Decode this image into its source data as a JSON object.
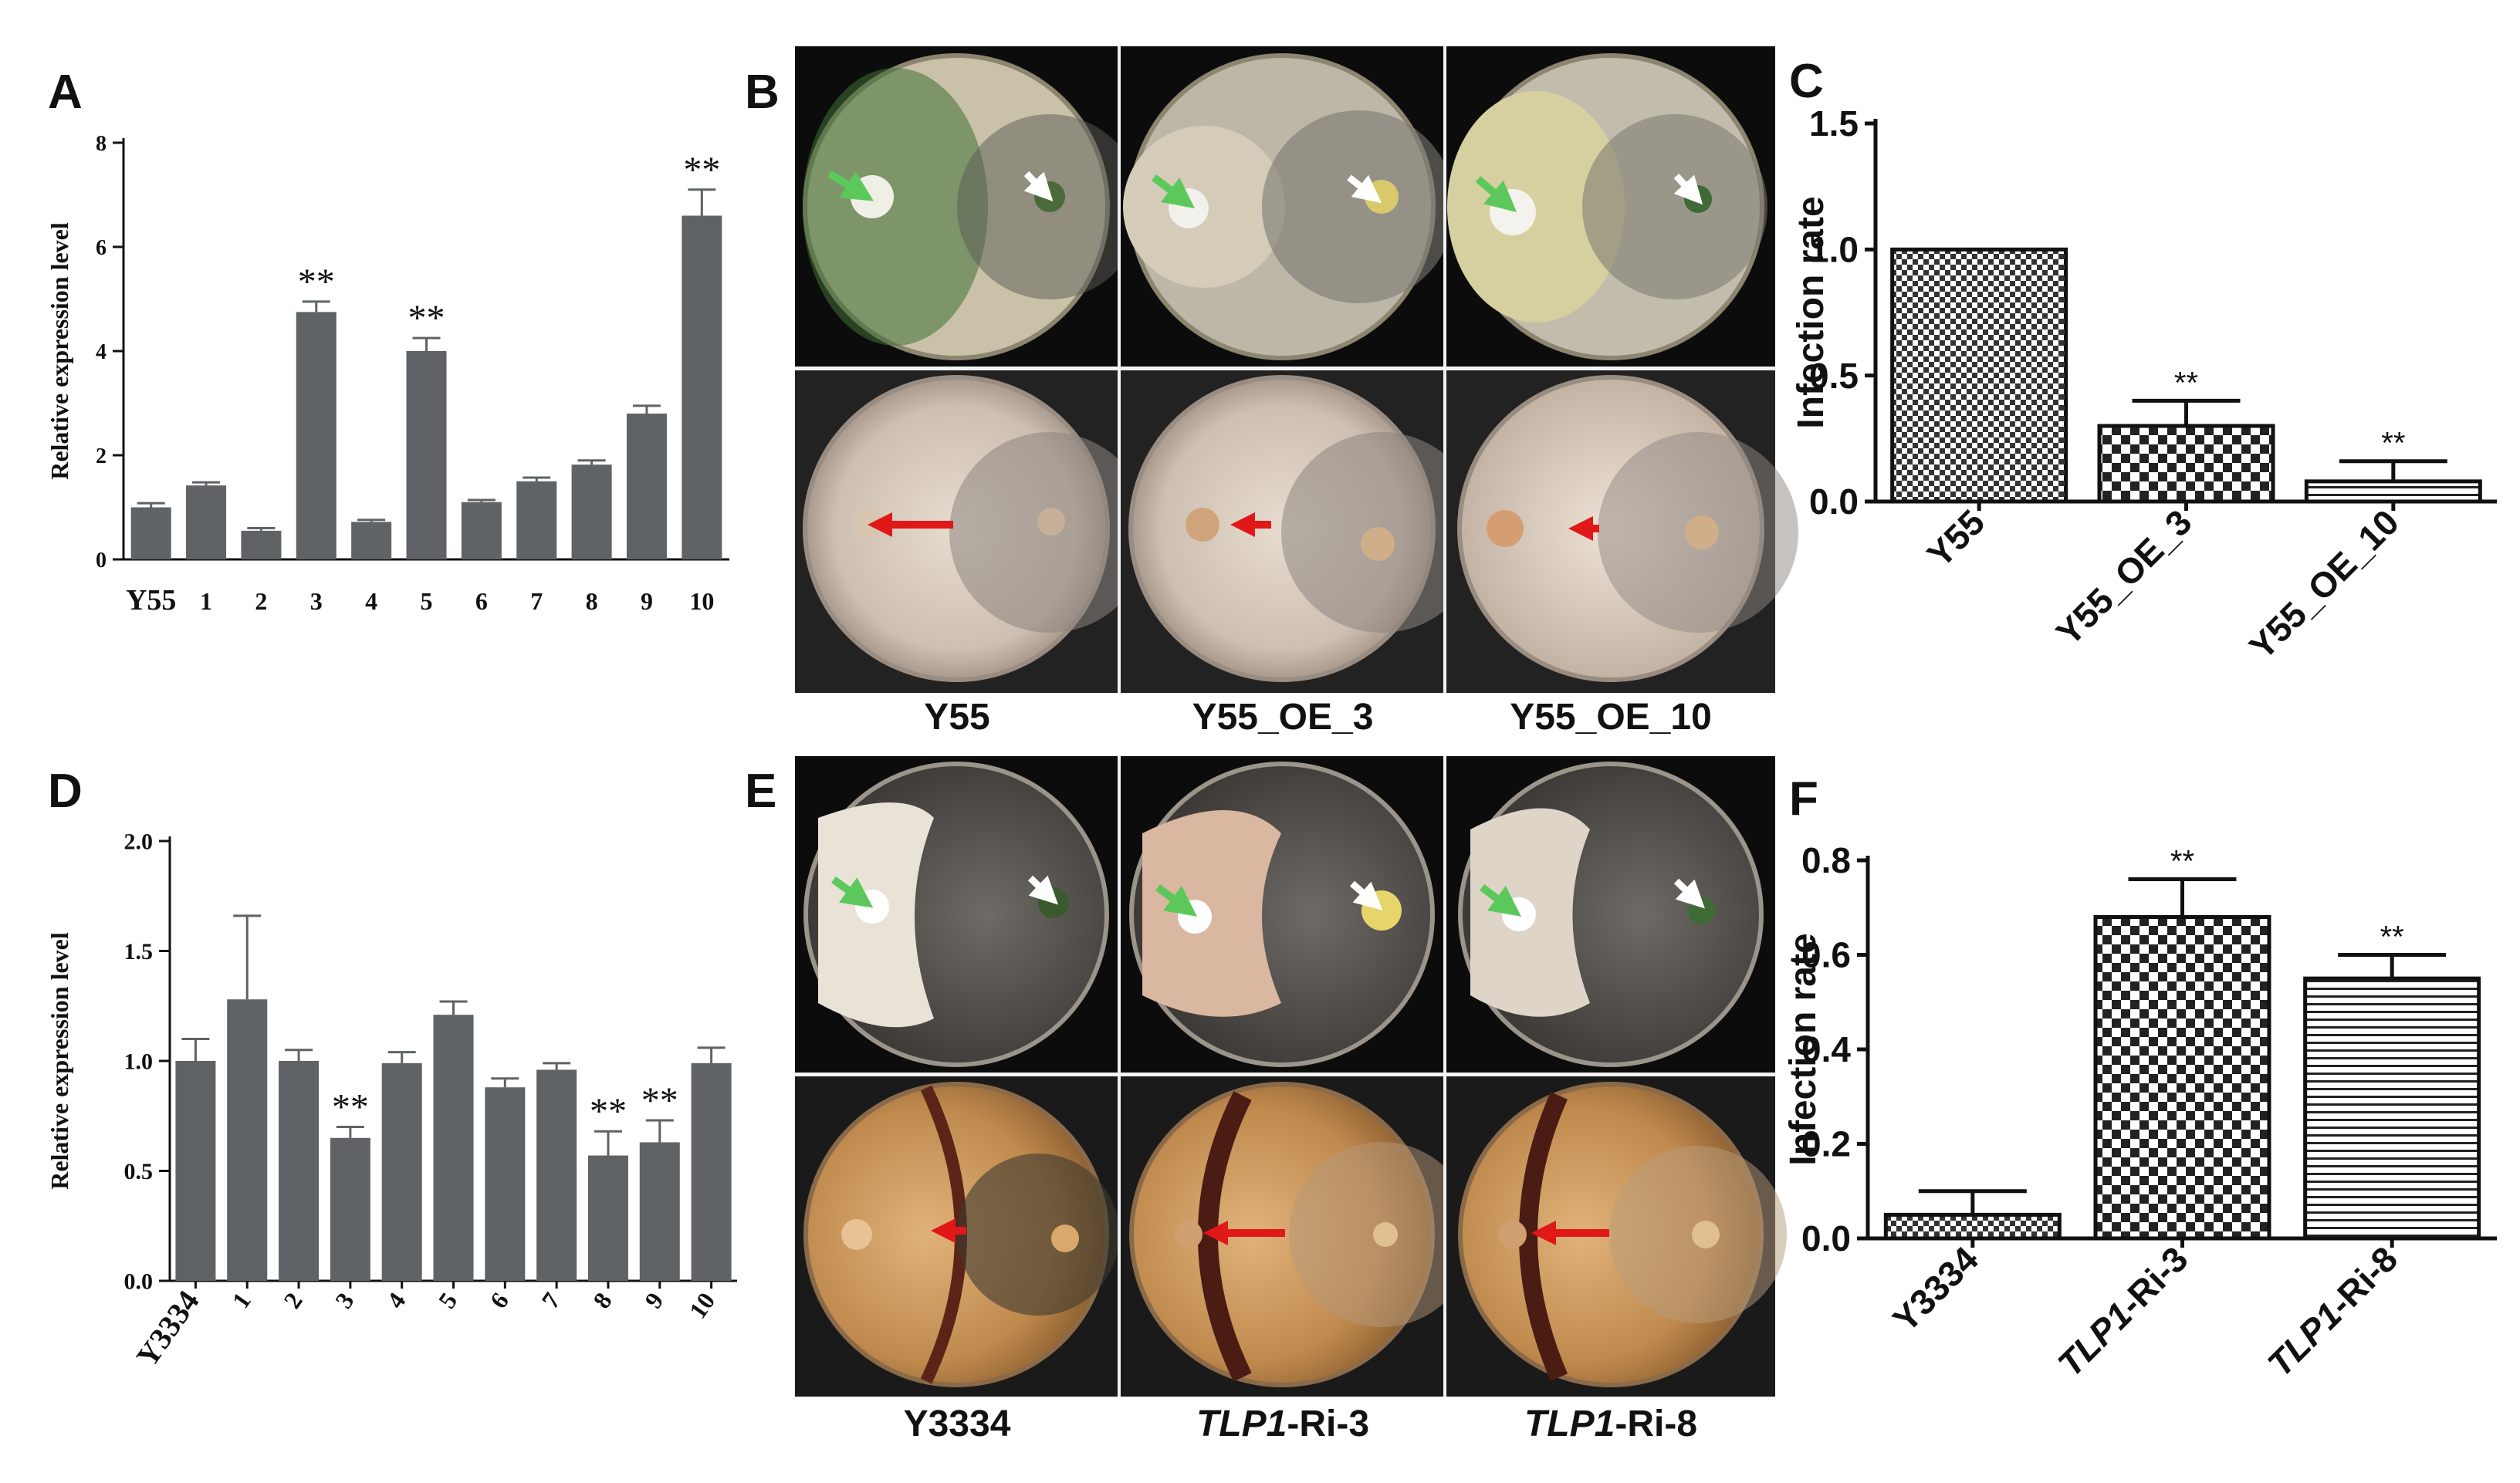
{
  "panels": {
    "A": "A",
    "B": "B",
    "C": "C",
    "D": "D",
    "E": "E",
    "F": "F"
  },
  "chart_data": [
    {
      "id": "A",
      "type": "bar",
      "ylabel": "Relative expression level",
      "xlabel": "",
      "ylim": [
        0,
        8
      ],
      "yticks": [
        0,
        2,
        4,
        6,
        8
      ],
      "categories": [
        "Y55",
        "1",
        "2",
        "3",
        "4",
        "5",
        "6",
        "7",
        "8",
        "9",
        "10"
      ],
      "values": [
        1.0,
        1.42,
        0.55,
        4.75,
        0.72,
        4.0,
        1.1,
        1.5,
        1.82,
        2.8,
        6.6
      ],
      "errors": [
        0.08,
        0.06,
        0.05,
        0.2,
        0.04,
        0.25,
        0.04,
        0.07,
        0.08,
        0.15,
        0.5
      ],
      "annotations": [
        "",
        "",
        "",
        "**",
        "",
        "**",
        "",
        "",
        "",
        "",
        "**"
      ],
      "bar_color": "#5f6365"
    },
    {
      "id": "C",
      "type": "bar",
      "ylabel": "Infection rate",
      "xlabel": "",
      "ylim": [
        0,
        1.5
      ],
      "yticks": [
        "0.0",
        "0.5",
        "1.0",
        "1.5"
      ],
      "categories": [
        "Y55",
        "Y55_OE_3",
        "Y55_OE_10"
      ],
      "values": [
        1.0,
        0.3,
        0.08
      ],
      "errors": [
        0.0,
        0.1,
        0.08
      ],
      "annotations": [
        "",
        "**",
        "**"
      ],
      "patterns": [
        "checker-fine",
        "checker-coarse",
        "hlines"
      ]
    },
    {
      "id": "D",
      "type": "bar",
      "ylabel": "Relative expression level",
      "xlabel": "",
      "ylim": [
        0,
        2.0
      ],
      "yticks": [
        "0.0",
        "0.5",
        "1.0",
        "1.5",
        "2.0"
      ],
      "categories": [
        "Y3334",
        "1",
        "2",
        "3",
        "4",
        "5",
        "6",
        "7",
        "8",
        "9",
        "10"
      ],
      "values": [
        1.0,
        1.28,
        1.0,
        0.65,
        0.99,
        1.21,
        0.88,
        0.96,
        0.57,
        0.63,
        0.99
      ],
      "errors": [
        0.1,
        0.38,
        0.05,
        0.05,
        0.05,
        0.06,
        0.04,
        0.03,
        0.11,
        0.1,
        0.07
      ],
      "annotations": [
        "",
        "",
        "",
        "**",
        "",
        "",
        "",
        "",
        "**",
        "**",
        ""
      ],
      "bar_color": "#5f6365"
    },
    {
      "id": "F",
      "type": "bar",
      "ylabel": "Infection rate",
      "xlabel": "",
      "ylim": [
        0,
        0.8
      ],
      "yticks": [
        "0.0",
        "0.2",
        "0.4",
        "0.6",
        "0.8"
      ],
      "categories": [
        "Y3334",
        "TLP1-Ri-3",
        "TLP1-Ri-8"
      ],
      "category_parts": [
        [
          "",
          "Y3334"
        ],
        [
          "TLP1",
          "-Ri-3"
        ],
        [
          "TLP1",
          "-Ri-8"
        ]
      ],
      "values": [
        0.05,
        0.68,
        0.55
      ],
      "errors": [
        0.05,
        0.08,
        0.05
      ],
      "annotations": [
        "",
        "**",
        "**"
      ],
      "patterns": [
        "checker-fine",
        "checker-coarse",
        "hlines"
      ]
    }
  ],
  "photos": {
    "B": {
      "labels": [
        "Y55",
        "Y55_OE_3",
        "Y55_OE_10"
      ]
    },
    "E": {
      "labels_parts": [
        [
          "",
          "Y3334"
        ],
        [
          "TLP1",
          "-Ri-3"
        ],
        [
          "TLP1",
          "-Ri-8"
        ]
      ]
    }
  },
  "colors": {
    "bar_gray": "#5f6365",
    "green_arrow": "#5cc85c",
    "white_arrow": "#ffffff",
    "red_arrow": "#e01818"
  }
}
